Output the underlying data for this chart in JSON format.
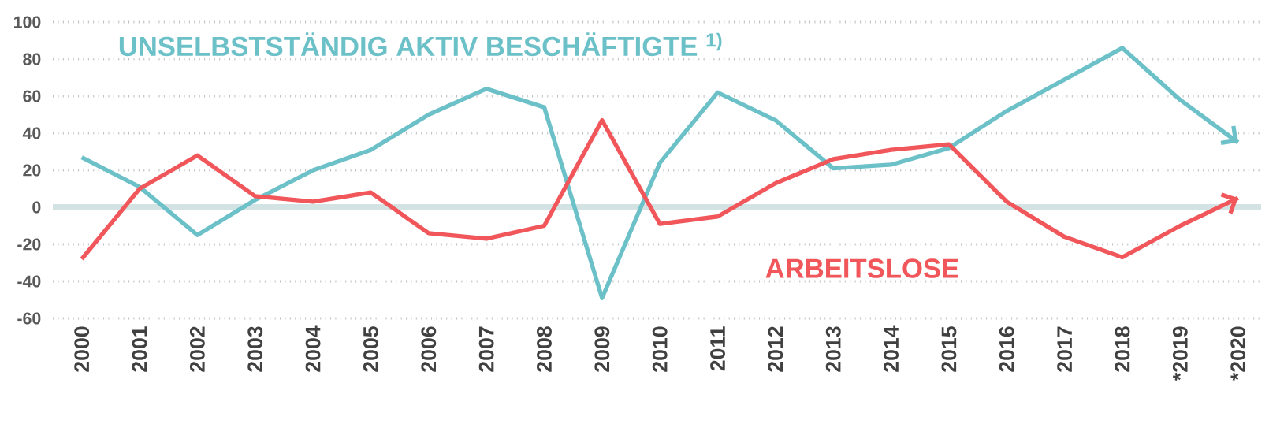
{
  "chart_data": {
    "type": "line",
    "categories": [
      "2000",
      "2001",
      "2002",
      "2003",
      "2004",
      "2005",
      "2006",
      "2007",
      "2008",
      "2009",
      "2010",
      "2011",
      "2012",
      "2013",
      "2014",
      "2015",
      "2016",
      "2017",
      "2018",
      "*2019",
      "*2020"
    ],
    "series": [
      {
        "name": "UNSELBSTSTÄNDIG AKTIV BESCHÄFTIGTE $^{1)}$",
        "color": "#6cc1c8",
        "values": [
          27,
          11,
          -15,
          4,
          20,
          31,
          50,
          64,
          54,
          -49,
          24,
          62,
          47,
          21,
          23,
          32,
          52,
          69,
          86,
          58,
          35
        ]
      },
      {
        "name": "ARBEITSLOSE",
        "color": "#f0565a",
        "values": [
          -28,
          10,
          28,
          6,
          3,
          8,
          -14,
          -17,
          -10,
          47,
          -9,
          -5,
          13,
          26,
          31,
          34,
          3,
          -16,
          -27,
          -10,
          5
        ]
      }
    ],
    "ylim": [
      -60,
      100
    ],
    "yticks": [
      -60,
      -40,
      -20,
      0,
      20,
      40,
      60,
      80,
      100
    ],
    "grid": "y",
    "legend": false,
    "marker": "none",
    "line_style": "solid",
    "ref_lines": [
      {
        "axis": "y",
        "value": 0,
        "color": "#d3e2e2"
      }
    ]
  }
}
